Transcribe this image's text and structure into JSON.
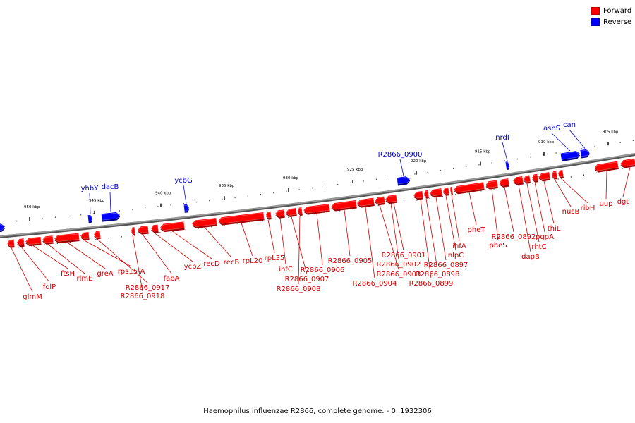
{
  "caption": "Haemophilus influenzae R2866, complete genome. - 0..1932306",
  "legend": [
    {
      "label": "Forward",
      "color": "#ff0000"
    },
    {
      "label": "Reverse",
      "color": "#0000ff"
    }
  ],
  "colors": {
    "forward": "#ff0000",
    "forward_label": "#cc0000",
    "reverse": "#0000ff",
    "reverse_label": "#0000cc",
    "backbone": "#8a8a8a"
  },
  "ticks": [
    {
      "kbp": 950,
      "label": "950 kbp"
    },
    {
      "kbp": 945,
      "label": "945 kbp"
    },
    {
      "kbp": 940,
      "label": "940 kbp"
    },
    {
      "kbp": 935,
      "label": "935 kbp"
    },
    {
      "kbp": 930,
      "label": "930 kbp"
    },
    {
      "kbp": 925,
      "label": "925 kbp"
    },
    {
      "kbp": 920,
      "label": "920 kbp"
    },
    {
      "kbp": 915,
      "label": "915 kbp"
    },
    {
      "kbp": 910,
      "label": "910 kbp"
    },
    {
      "kbp": 905,
      "label": "905 kbp"
    }
  ],
  "forward_labels": [
    "glmM",
    "folP",
    "ftsH",
    "rlmE",
    "greA",
    "rps15-A",
    "R2866_0917",
    "R2866_0918",
    "fabA",
    "ycbZ",
    "recD",
    "recB",
    "rpL20",
    "rpL35",
    "infC",
    "R2866_0907",
    "R2866_0908",
    "R2866_0906",
    "R2866_0905",
    "R2866_0904",
    "R2866_0903",
    "R2866_0902",
    "R2866_0901",
    "R2866_0899",
    "R2866_0898",
    "R2866_0897",
    "nlpC",
    "ihfA",
    "pheT",
    "pheS",
    "R2866_0892",
    "dapB",
    "rhtC",
    "pgpA",
    "thiL",
    "nusB",
    "ribH",
    "uup",
    "dgt"
  ],
  "reverse_labels": [
    "yhbY",
    "dacB",
    "ycbG",
    "R2866_0900",
    "nrdI",
    "asnS",
    "can"
  ]
}
